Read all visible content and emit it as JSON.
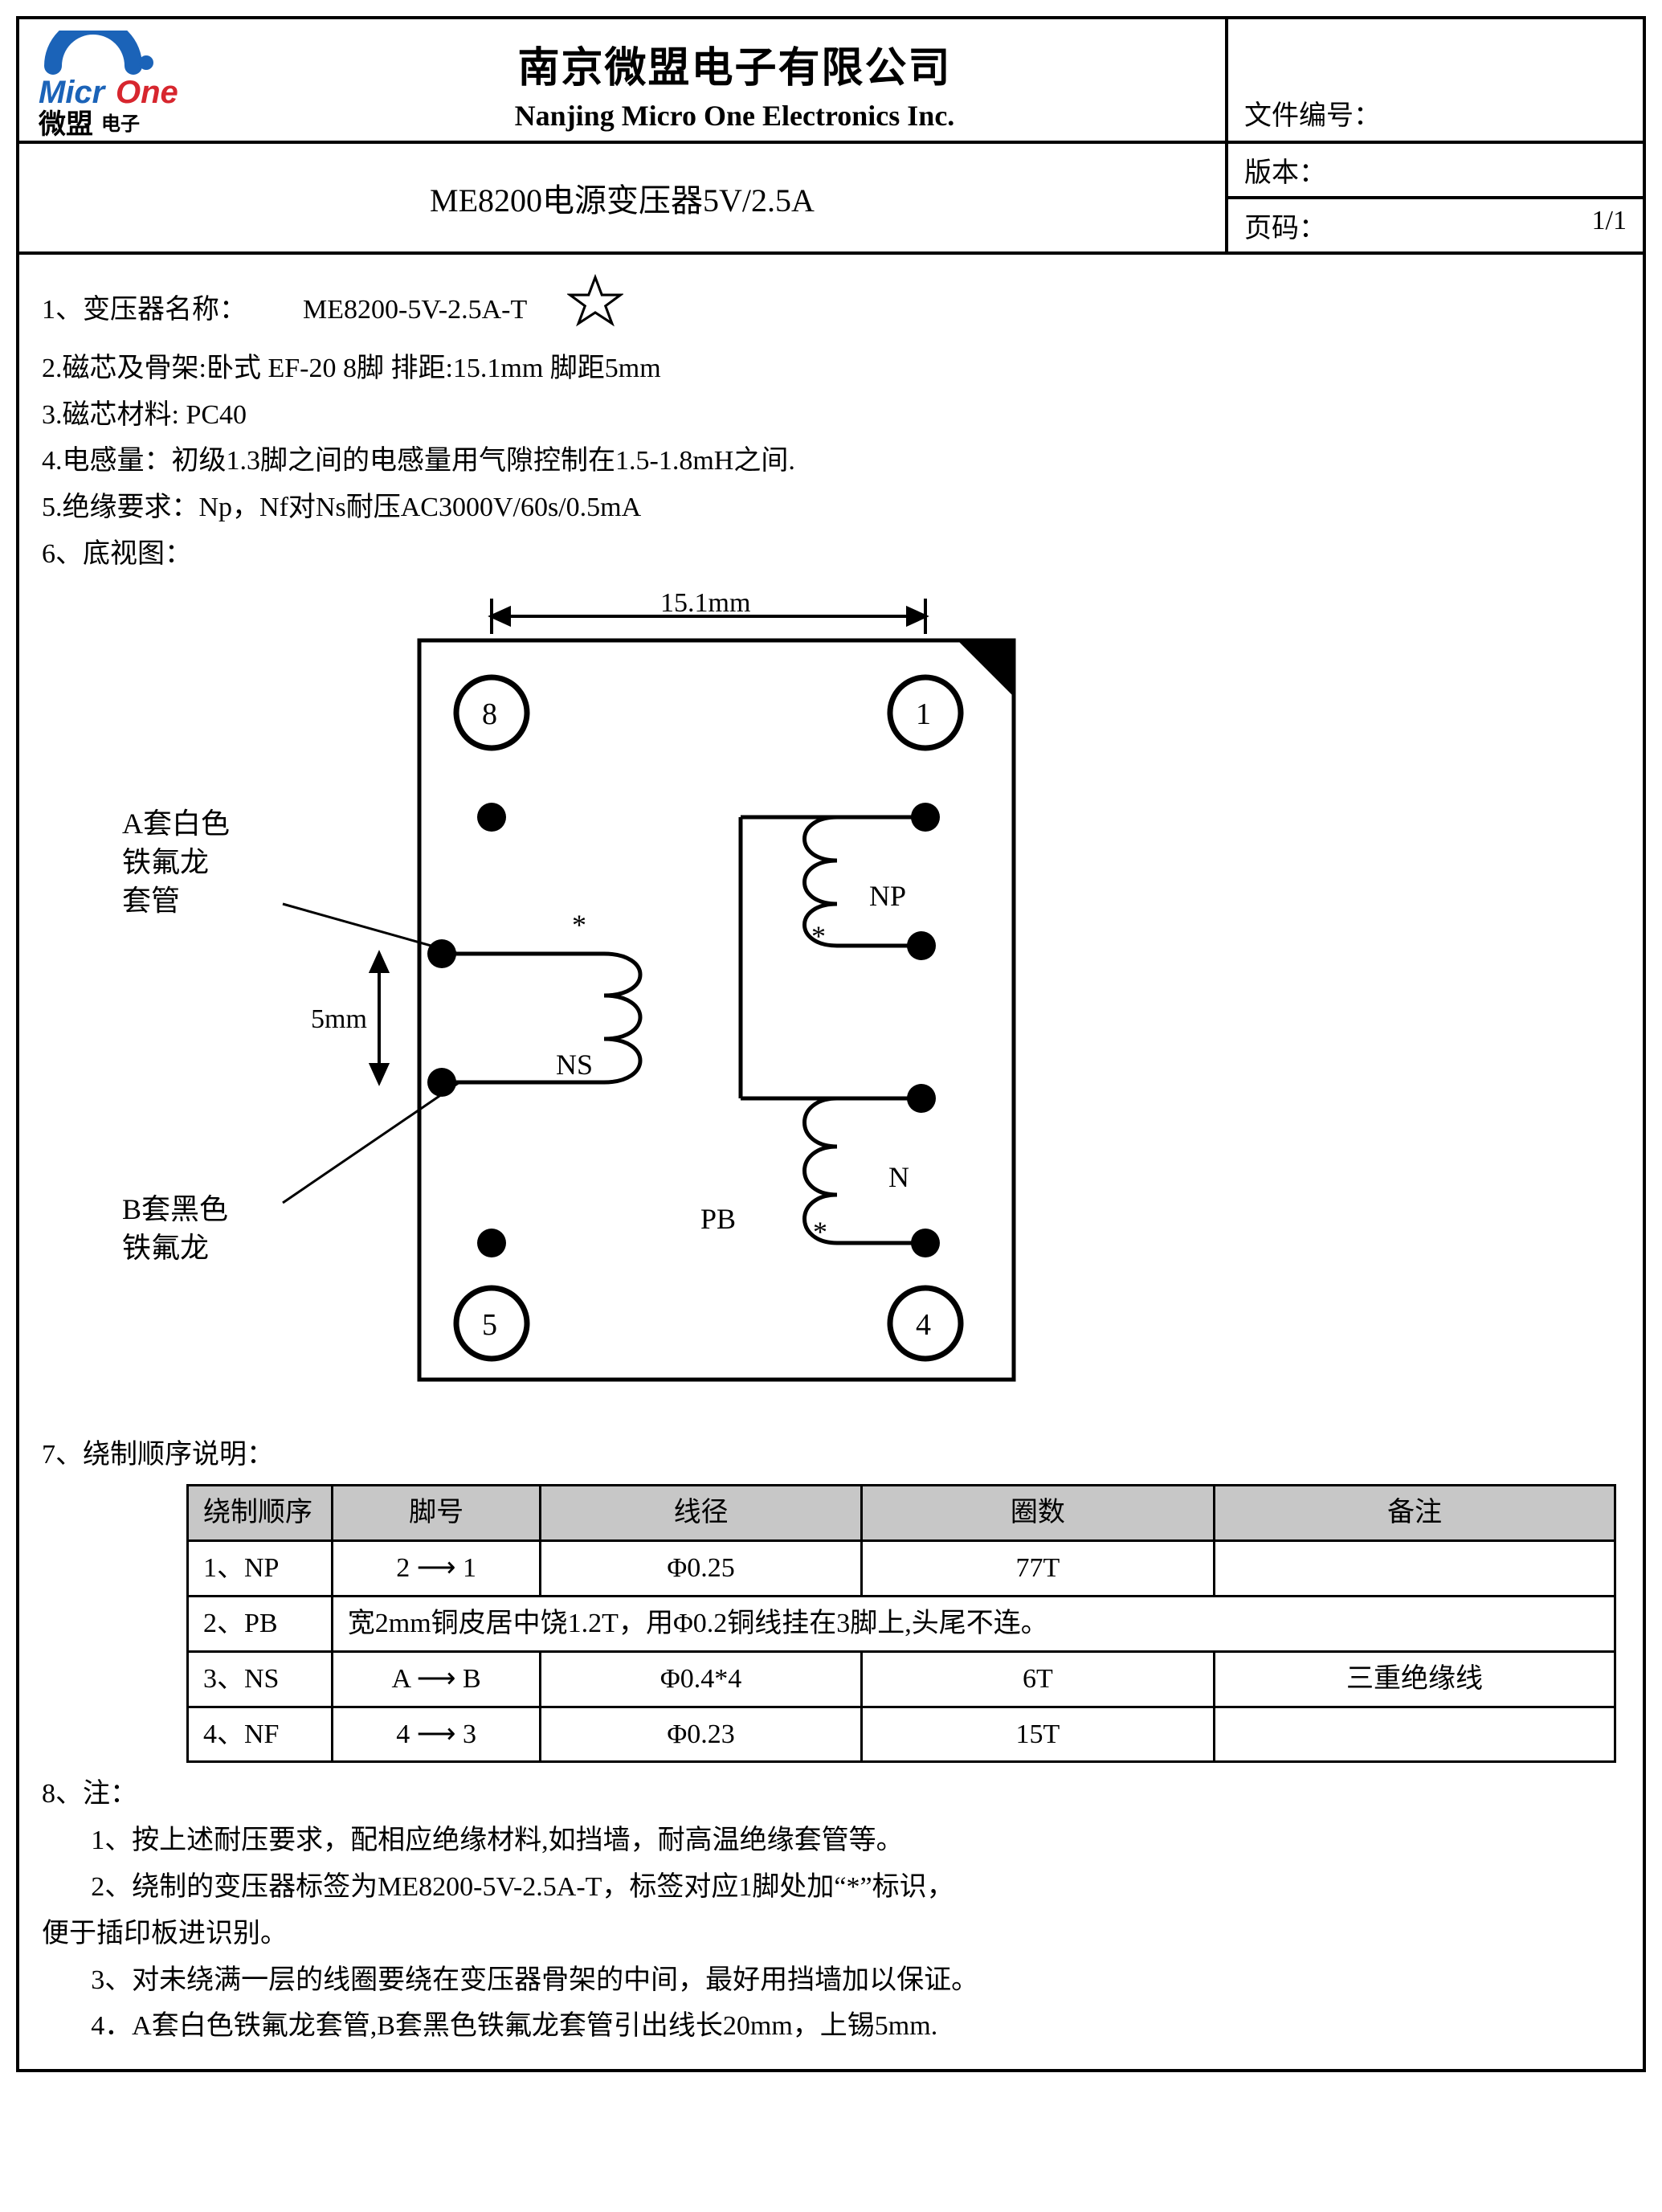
{
  "header": {
    "logo": {
      "wordmark_micr": "Micr",
      "wordmark_one": "One",
      "cn_brand_1": "微盟",
      "cn_brand_2": "电子",
      "arc_color": "#1b63b8",
      "text_blue": "#1b63b8",
      "text_red": "#d7262e"
    },
    "company_cn": "南京微盟电子有限公司",
    "company_en": "Nanjing Micro One Electronics Inc.",
    "doc_no_label": "文件编号：",
    "doc_title": "ME8200电源变压器5V/2.5A",
    "version_label": "版本：",
    "page_label": "页码：",
    "page_value": "1/1"
  },
  "spec": {
    "l1_label": "1、变压器名称：",
    "l1_value": "ME8200-5V-2.5A-T",
    "l2": "2.磁芯及骨架:卧式  EF-20  8脚  排距:15.1mm    脚距5mm",
    "l3": "3.磁芯材料: PC40",
    "l4": "4.电感量：初级1.3脚之间的电感量用气隙控制在1.5-1.8mH之间.",
    "l5": "5.绝缘要求：Np，Nf对Ns耐压AC3000V/60s/0.5mA",
    "l6": "6、底视图："
  },
  "diagram": {
    "width_label": "15.1mm",
    "pitch_label": "5mm",
    "pins": {
      "p1": "1",
      "p4": "4",
      "p5": "5",
      "p8": "8"
    },
    "labels": {
      "NP": "NP",
      "NS": "NS",
      "PB": "PB",
      "N": "N"
    },
    "callout_a_1": "A套白色",
    "callout_a_2": "铁氟龙",
    "callout_a_3": "套管",
    "callout_b_1": "B套黑色",
    "callout_b_2": "铁氟龙",
    "star_mark": "*",
    "stroke": "#000000",
    "stroke_w": 5,
    "font_family": "Times New Roman"
  },
  "winding": {
    "section_title": "7、绕制顺序说明：",
    "columns": [
      "绕制顺序",
      "脚号",
      "线径",
      "圈数",
      "备注"
    ],
    "rows": [
      {
        "order": "1、NP",
        "pins_from": "2",
        "pins_to": "1",
        "wire": "Φ0.25",
        "turns": "77T",
        "remark": "",
        "colspan": false
      },
      {
        "order": "2、PB",
        "merged": "宽2mm铜皮居中饶1.2T，用Φ0.2铜线挂在3脚上,头尾不连。",
        "colspan": true
      },
      {
        "order": "3、NS",
        "pins_from": "A",
        "pins_to": "B",
        "wire": "Φ0.4*4",
        "turns": "6T",
        "remark": "三重绝缘线",
        "colspan": false
      },
      {
        "order": "4、NF",
        "pins_from": "4",
        "pins_to": "3",
        "wire": "Φ0.23",
        "turns": "15T",
        "remark": "",
        "colspan": false
      }
    ]
  },
  "notes": {
    "title": "8、注：",
    "items": [
      "1、按上述耐压要求，配相应绝缘材料,如挡墙，耐高温绝缘套管等。",
      "2、绕制的变压器标签为ME8200-5V-2.5A-T，标签对应1脚处加“*”标识，",
      "便于插印板进识别。",
      "3、对未绕满一层的线圈要绕在变压器骨架的中间，最好用挡墙加以保证。",
      "4．A套白色铁氟龙套管,B套黑色铁氟龙套管引出线长20mm，上锡5mm."
    ]
  }
}
